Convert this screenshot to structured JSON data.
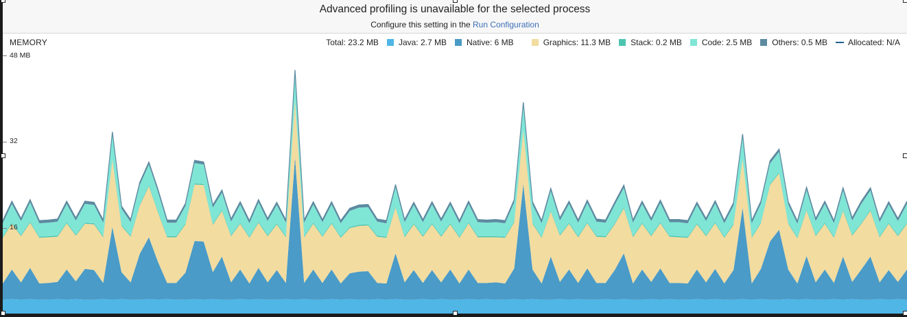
{
  "banner": {
    "title": "Advanced profiling is unavailable for the selected process",
    "subtitle_prefix": "Configure this setting in the ",
    "subtitle_link": "Run Configuration"
  },
  "stage": {
    "title": "MEMORY"
  },
  "legend": {
    "total": "Total: 23.2 MB",
    "java": "Java: 2.7 MB",
    "native": "Native: 6 MB",
    "graphics": "Graphics: 11.3 MB",
    "stack": "Stack: 0.2 MB",
    "code": "Code: 2.5 MB",
    "others": "Others: 0.5 MB",
    "allocated": "Allocated: N/A"
  },
  "axis": {
    "max_label": "48 MB",
    "mid_label": "32",
    "low_label": "16"
  },
  "colors": {
    "java": "#4fb6e6",
    "native": "#4a9bc7",
    "graphics": "#f2dca0",
    "stack": "#4cc5b0",
    "code": "#7fe6d6",
    "others": "#5d8aa0",
    "allocated": "#1f5f8b"
  },
  "chart_data": {
    "type": "area",
    "stacked": true,
    "ylim": [
      0,
      48
    ],
    "ticks": [
      16,
      32,
      48
    ],
    "x": [
      0,
      1,
      2,
      3,
      4,
      5,
      6,
      7,
      8,
      9,
      10,
      11,
      12,
      13,
      14,
      15,
      16,
      17,
      18,
      19,
      20,
      21,
      22,
      23,
      24,
      25,
      26,
      27,
      28,
      29,
      30,
      31,
      32,
      33,
      34,
      35,
      36,
      37,
      38,
      39,
      40,
      41,
      42,
      43,
      44,
      45,
      46,
      47,
      48,
      49,
      50,
      51,
      52,
      53,
      54,
      55,
      56,
      57,
      58,
      59,
      60,
      61,
      62,
      63,
      64,
      65,
      66,
      67,
      68,
      69,
      70,
      71,
      72,
      73,
      74,
      75,
      76,
      77,
      78,
      79,
      80,
      81,
      82,
      83,
      84,
      85,
      86,
      87,
      88,
      89,
      90,
      91,
      92,
      93,
      94,
      95,
      96,
      97,
      98,
      99
    ],
    "series": [
      {
        "name": "Java",
        "values": [
          2.6,
          2.7,
          2.6,
          2.7,
          2.6,
          2.6,
          2.7,
          2.6,
          2.7,
          2.6,
          2.6,
          2.7,
          2.6,
          2.7,
          2.6,
          2.6,
          2.7,
          2.6,
          2.7,
          2.6,
          2.6,
          2.7,
          2.6,
          2.7,
          2.6,
          2.6,
          2.7,
          2.6,
          2.7,
          2.6,
          2.6,
          2.7,
          2.6,
          2.7,
          2.6,
          2.6,
          2.7,
          2.6,
          2.7,
          2.6,
          2.6,
          2.7,
          2.6,
          2.7,
          2.6,
          2.6,
          2.7,
          2.6,
          2.7,
          2.6,
          2.6,
          2.7,
          2.6,
          2.7,
          2.6,
          2.6,
          2.7,
          2.6,
          2.7,
          2.6,
          2.6,
          2.7,
          2.6,
          2.7,
          2.6,
          2.6,
          2.7,
          2.6,
          2.7,
          2.6,
          2.6,
          2.7,
          2.6,
          2.7,
          2.6,
          2.6,
          2.7,
          2.6,
          2.7,
          2.6,
          2.6,
          2.7,
          2.6,
          2.7,
          2.6,
          2.6,
          2.7,
          2.6,
          2.7,
          2.6,
          2.6,
          2.7,
          2.6,
          2.7,
          2.6,
          2.6,
          2.7,
          2.6,
          2.7,
          2.6
        ]
      },
      {
        "name": "Native",
        "values": [
          3.0,
          5.5,
          3.2,
          5.8,
          3.0,
          3.1,
          3.2,
          5.6,
          3.3,
          5.7,
          5.5,
          3.0,
          13.5,
          5.0,
          3.2,
          8.5,
          11.5,
          7.0,
          3.0,
          3.1,
          5.0,
          10.8,
          10.8,
          5.0,
          8.0,
          3.2,
          5.5,
          3.0,
          5.8,
          3.2,
          5.5,
          3.0,
          26.5,
          3.0,
          5.6,
          3.1,
          5.5,
          3.0,
          4.8,
          5.2,
          5.3,
          3.0,
          3.0,
          8.5,
          3.2,
          5.5,
          3.0,
          5.5,
          3.1,
          5.6,
          3.0,
          5.5,
          3.1,
          3.0,
          3.2,
          3.0,
          5.7,
          21.5,
          5.5,
          3.0,
          8.0,
          3.2,
          5.6,
          3.0,
          5.8,
          3.1,
          3.0,
          5.5,
          8.5,
          3.0,
          5.6,
          3.2,
          5.8,
          3.0,
          3.1,
          3.0,
          5.5,
          3.2,
          5.6,
          3.0,
          5.5,
          17.0,
          3.0,
          5.6,
          10.8,
          13.0,
          5.5,
          3.0,
          8.0,
          3.2,
          5.6,
          3.0,
          8.0,
          3.2,
          5.6,
          8.0,
          3.1,
          5.5,
          3.2,
          5.6
        ]
      },
      {
        "name": "Graphics",
        "values": [
          8.5,
          8.5,
          8.6,
          8.4,
          8.5,
          8.5,
          8.4,
          8.6,
          8.5,
          8.4,
          8.5,
          8.5,
          12.5,
          8.6,
          8.5,
          9.0,
          9.5,
          9.2,
          8.5,
          8.5,
          9.0,
          10.5,
          10.5,
          8.8,
          8.5,
          8.6,
          8.5,
          8.5,
          8.4,
          8.6,
          8.5,
          8.5,
          10.5,
          8.5,
          8.5,
          8.6,
          8.5,
          8.5,
          8.4,
          8.5,
          8.5,
          8.6,
          8.5,
          8.5,
          8.4,
          8.5,
          8.6,
          8.5,
          8.5,
          8.4,
          8.5,
          8.6,
          8.5,
          8.5,
          8.4,
          8.5,
          8.6,
          10.0,
          8.5,
          8.5,
          8.4,
          8.6,
          8.5,
          8.5,
          8.4,
          8.6,
          8.5,
          8.5,
          8.4,
          8.6,
          8.5,
          8.5,
          8.4,
          8.6,
          8.5,
          8.5,
          8.4,
          8.6,
          8.5,
          8.5,
          8.4,
          9.0,
          8.5,
          8.5,
          10.5,
          10.5,
          8.5,
          8.4,
          8.5,
          8.6,
          8.5,
          8.4,
          8.5,
          8.6,
          8.5,
          8.5,
          8.4,
          8.6,
          8.5,
          8.5
        ]
      },
      {
        "name": "Stack",
        "values": [
          0.2,
          0.2,
          0.2,
          0.2,
          0.2,
          0.2,
          0.2,
          0.2,
          0.2,
          0.2,
          0.2,
          0.2,
          0.2,
          0.2,
          0.2,
          0.2,
          0.2,
          0.2,
          0.2,
          0.2,
          0.2,
          0.2,
          0.2,
          0.2,
          0.2,
          0.2,
          0.2,
          0.2,
          0.2,
          0.2,
          0.2,
          0.2,
          0.2,
          0.2,
          0.2,
          0.2,
          0.2,
          0.2,
          0.2,
          0.2,
          0.2,
          0.2,
          0.2,
          0.2,
          0.2,
          0.2,
          0.2,
          0.2,
          0.2,
          0.2,
          0.2,
          0.2,
          0.2,
          0.2,
          0.2,
          0.2,
          0.2,
          0.2,
          0.2,
          0.2,
          0.2,
          0.2,
          0.2,
          0.2,
          0.2,
          0.2,
          0.2,
          0.2,
          0.2,
          0.2,
          0.2,
          0.2,
          0.2,
          0.2,
          0.2,
          0.2,
          0.2,
          0.2,
          0.2,
          0.2,
          0.2,
          0.2,
          0.2,
          0.2,
          0.2,
          0.2,
          0.2,
          0.2,
          0.2,
          0.2,
          0.2,
          0.2,
          0.2,
          0.2,
          0.2,
          0.2,
          0.2,
          0.2,
          0.2,
          0.2
        ]
      },
      {
        "name": "Code",
        "values": [
          2.5,
          3.5,
          2.6,
          3.6,
          2.5,
          2.5,
          2.6,
          3.4,
          2.6,
          3.5,
          3.4,
          2.5,
          4.5,
          3.0,
          2.5,
          3.6,
          3.8,
          3.6,
          2.5,
          2.5,
          3.2,
          3.8,
          3.6,
          3.0,
          3.2,
          2.5,
          3.4,
          2.5,
          3.6,
          2.6,
          3.4,
          2.5,
          5.0,
          2.5,
          3.4,
          2.5,
          3.4,
          2.5,
          3.0,
          3.2,
          3.2,
          2.6,
          2.5,
          3.6,
          2.6,
          3.4,
          2.5,
          3.5,
          2.6,
          3.4,
          2.5,
          3.4,
          2.6,
          2.5,
          2.6,
          2.5,
          3.5,
          4.5,
          3.4,
          2.5,
          3.6,
          2.6,
          3.5,
          2.5,
          3.6,
          2.6,
          2.5,
          3.4,
          3.6,
          2.5,
          3.5,
          2.6,
          3.6,
          2.5,
          2.6,
          2.5,
          3.4,
          2.6,
          3.5,
          2.5,
          3.4,
          4.0,
          2.5,
          3.4,
          3.8,
          3.8,
          3.4,
          2.5,
          3.6,
          2.6,
          3.5,
          2.5,
          3.6,
          2.6,
          3.5,
          3.6,
          2.6,
          3.4,
          2.6,
          3.5
        ]
      },
      {
        "name": "Others",
        "values": [
          0.5,
          0.5,
          0.5,
          0.5,
          0.5,
          0.5,
          0.5,
          0.5,
          0.5,
          0.5,
          0.5,
          0.5,
          0.5,
          0.5,
          0.5,
          0.5,
          0.5,
          0.5,
          0.5,
          0.5,
          0.5,
          0.5,
          0.5,
          0.5,
          0.5,
          0.5,
          0.5,
          0.5,
          0.5,
          0.5,
          0.5,
          0.5,
          0.5,
          0.5,
          0.5,
          0.5,
          0.5,
          0.5,
          0.5,
          0.5,
          0.5,
          0.5,
          0.5,
          0.5,
          0.5,
          0.5,
          0.5,
          0.5,
          0.5,
          0.5,
          0.5,
          0.5,
          0.5,
          0.5,
          0.5,
          0.5,
          0.5,
          0.5,
          0.5,
          0.5,
          0.5,
          0.5,
          0.5,
          0.5,
          0.5,
          0.5,
          0.5,
          0.5,
          0.5,
          0.5,
          0.5,
          0.5,
          0.5,
          0.5,
          0.5,
          0.5,
          0.5,
          0.5,
          0.5,
          0.5,
          0.5,
          0.5,
          0.5,
          0.5,
          0.5,
          0.5,
          0.5,
          0.5,
          0.5,
          0.5,
          0.5,
          0.5,
          0.5,
          0.5,
          0.5,
          0.5,
          0.5,
          0.5,
          0.5,
          0.5
        ]
      }
    ]
  }
}
